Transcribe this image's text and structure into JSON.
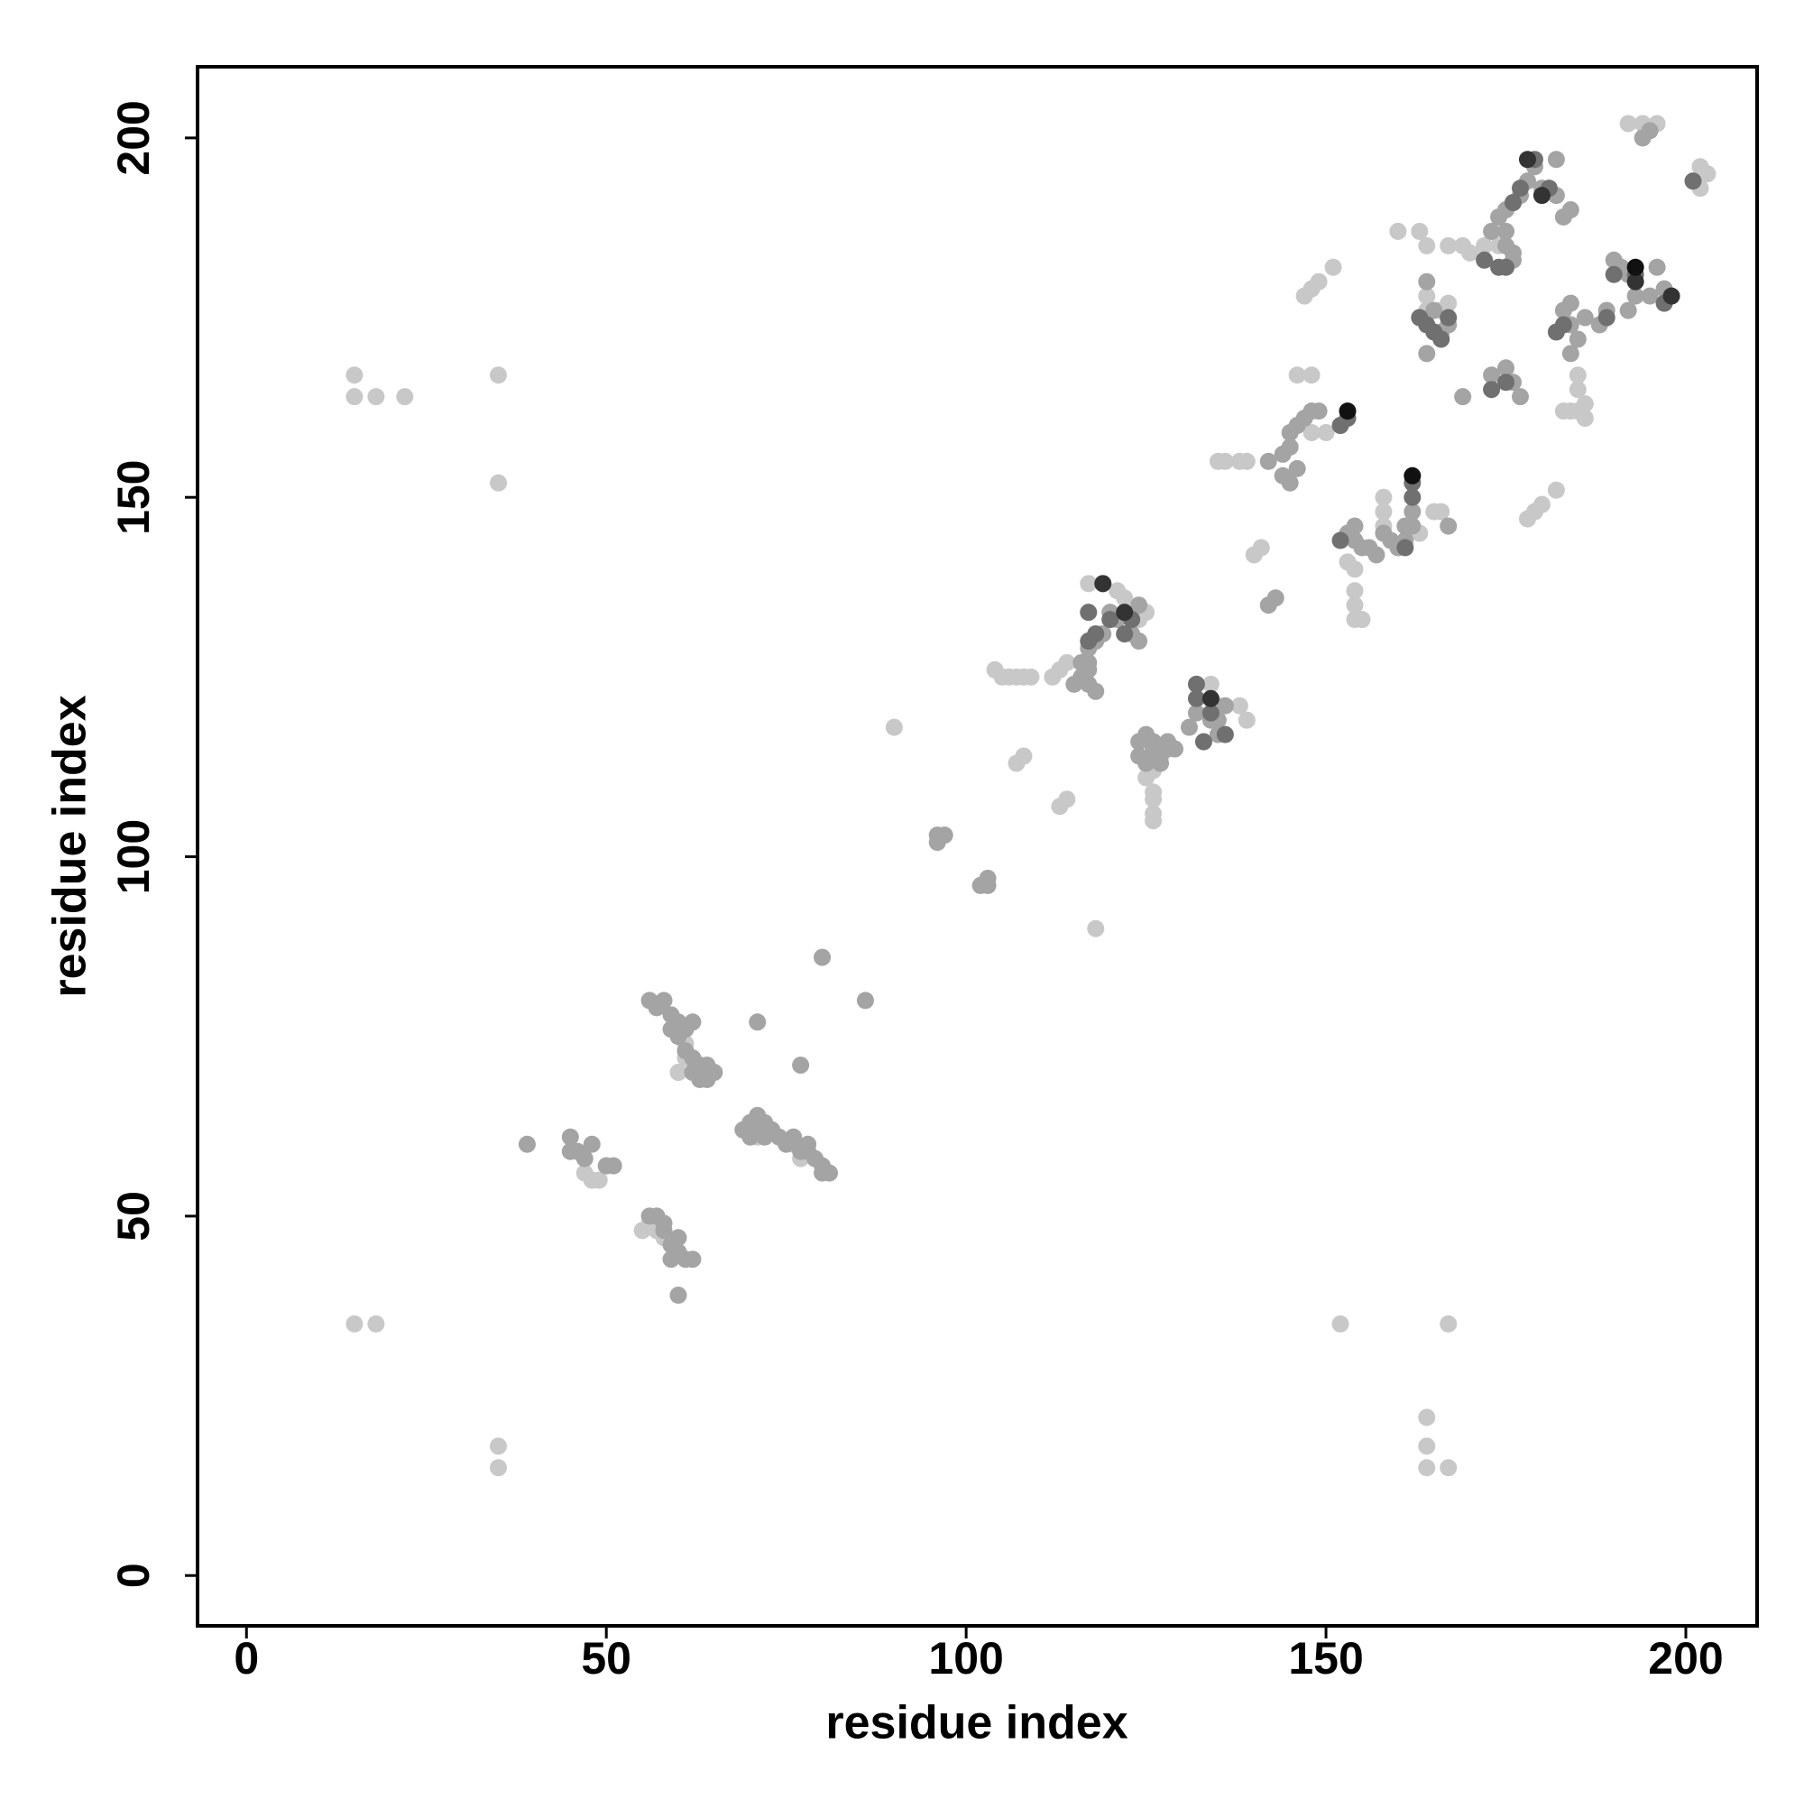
{
  "chart_data": {
    "type": "scatter",
    "xlabel": "residue index",
    "ylabel": "residue index",
    "xlim": [
      -6.8,
      209.9
    ],
    "ylim": [
      -7,
      209.9
    ],
    "xticks": [
      0,
      50,
      100,
      150,
      200
    ],
    "yticks": [
      0,
      50,
      100,
      150,
      200
    ],
    "grid": false,
    "series": [
      {
        "color": "#c8c8c8",
        "x": [
          15,
          15,
          18,
          22,
          35,
          35,
          15,
          18,
          35,
          35,
          152,
          167,
          164,
          164,
          164,
          167,
          90,
          118,
          113,
          114,
          107,
          108,
          104,
          105,
          106,
          107,
          108,
          109,
          112,
          113,
          114,
          126,
          126,
          126,
          126,
          125,
          126,
          138,
          139,
          135,
          134,
          135,
          136,
          138,
          139,
          147,
          148,
          149,
          151,
          154,
          154,
          155,
          154,
          160,
          163,
          164,
          167,
          169,
          178,
          179,
          180,
          182,
          185,
          186,
          186,
          185,
          192,
          194,
          196,
          202,
          203,
          202,
          117,
          119,
          121,
          122,
          124,
          125,
          164,
          164,
          166,
          167,
          165,
          166,
          163,
          158,
          158,
          158,
          183,
          184,
          185,
          172,
          174,
          170,
          146,
          148,
          148,
          150,
          140,
          141,
          56,
          57,
          55,
          58,
          47,
          48,
          49,
          50,
          61,
          61,
          60,
          70,
          71,
          76,
          77,
          153,
          154
        ],
        "y": [
          167,
          164,
          164,
          164,
          167,
          152,
          35,
          35,
          18,
          15,
          35,
          35,
          22,
          18,
          15,
          15,
          118,
          90,
          107,
          108,
          113,
          114,
          126,
          125,
          125,
          125,
          125,
          125,
          125,
          126,
          127,
          105,
          106,
          108,
          109,
          111,
          112,
          121,
          119,
          121,
          124,
          155,
          155,
          155,
          155,
          178,
          179,
          180,
          182,
          133,
          135,
          133,
          137,
          187,
          187,
          185,
          185,
          185,
          147,
          148,
          149,
          151,
          165,
          163,
          161,
          167,
          202,
          202,
          202,
          193,
          195,
          196,
          138,
          138,
          137,
          136,
          133,
          134,
          178,
          176,
          176,
          177,
          148,
          148,
          145,
          150,
          148,
          146,
          162,
          162,
          162,
          185,
          185,
          184,
          167,
          167,
          159,
          159,
          142,
          143,
          49,
          48,
          48,
          47,
          56,
          55,
          55,
          57,
          74,
          72,
          70,
          63,
          61,
          60,
          58,
          141,
          140
        ]
      },
      {
        "color": "#a4a4a4",
        "x": [
          39,
          45,
          45,
          46,
          47,
          48,
          50,
          51,
          56,
          57,
          58,
          59,
          59,
          60,
          61,
          62,
          60,
          60,
          58,
          56,
          57,
          58,
          59,
          59,
          60,
          60,
          61,
          62,
          61,
          62,
          62,
          63,
          63,
          64,
          65,
          64,
          69,
          70,
          70,
          71,
          71,
          72,
          72,
          73,
          74,
          75,
          76,
          77,
          78,
          78,
          79,
          80,
          81,
          80,
          71,
          77,
          80,
          86,
          96,
          97,
          96,
          102,
          103,
          103,
          115,
          116,
          117,
          117,
          116,
          117,
          117,
          118,
          118,
          119,
          120,
          121,
          123,
          124,
          124,
          124,
          125,
          124,
          125,
          126,
          127,
          128,
          129,
          126,
          127,
          128,
          131,
          132,
          134,
          135,
          135,
          136,
          142,
          143,
          142,
          144,
          145,
          144,
          145,
          146,
          145,
          146,
          147,
          148,
          149,
          153,
          154,
          154,
          155,
          156,
          157,
          158,
          159,
          160,
          161,
          161,
          162,
          162,
          167,
          164,
          165,
          164,
          166,
          167,
          173,
          175,
          175,
          176,
          176,
          174,
          175,
          176,
          177,
          178,
          180,
          179,
          182,
          183,
          184,
          182,
          173,
          175,
          176,
          177,
          184,
          183,
          184,
          185,
          184,
          186,
          188,
          189,
          190,
          191,
          192,
          193,
          195,
          196,
          197,
          192,
          195,
          194,
          169
        ],
        "y": [
          60,
          61,
          59,
          59,
          58,
          60,
          57,
          57,
          50,
          50,
          48,
          46,
          44,
          45,
          44,
          44,
          47,
          39,
          49,
          80,
          79,
          80,
          78,
          76,
          77,
          75,
          76,
          77,
          73,
          72,
          70,
          71,
          69,
          71,
          70,
          69,
          62,
          63,
          61,
          64,
          62,
          63,
          61,
          62,
          61,
          60,
          61,
          59,
          59,
          60,
          58,
          57,
          56,
          56,
          77,
          71,
          86,
          80,
          102,
          103,
          103,
          96,
          97,
          96,
          124,
          125,
          124,
          127,
          127,
          126,
          129,
          123,
          130,
          131,
          134,
          133,
          131,
          130,
          135,
          116,
          117,
          114,
          113,
          115,
          114,
          115,
          115,
          116,
          113,
          116,
          118,
          120,
          119,
          117,
          119,
          121,
          135,
          136,
          155,
          153,
          152,
          156,
          157,
          154,
          159,
          160,
          161,
          162,
          162,
          145,
          146,
          144,
          143,
          143,
          142,
          145,
          144,
          143,
          144,
          146,
          146,
          148,
          146,
          180,
          176,
          170,
          173,
          174,
          187,
          187,
          185,
          184,
          183,
          189,
          190,
          191,
          192,
          194,
          193,
          196,
          197,
          189,
          190,
          192,
          167,
          168,
          166,
          164,
          177,
          176,
          174,
          172,
          170,
          175,
          174,
          176,
          183,
          182,
          181,
          178,
          178,
          182,
          179,
          176,
          201,
          200,
          164
        ]
      },
      {
        "color": "#707070",
        "x": [
          117,
          118,
          117,
          120,
          122,
          123,
          132,
          132,
          133,
          136,
          134,
          152,
          152,
          153,
          162,
          162,
          161,
          163,
          164,
          165,
          166,
          167,
          174,
          175,
          172,
          176,
          177,
          179,
          181,
          173,
          175,
          182,
          183,
          189,
          190,
          193,
          197,
          201
        ],
        "y": [
          134,
          131,
          130,
          133,
          131,
          133,
          122,
          124,
          116,
          117,
          120,
          144,
          160,
          161,
          152,
          150,
          143,
          175,
          174,
          173,
          172,
          175,
          182,
          182,
          183,
          191,
          193,
          197,
          193,
          165,
          166,
          173,
          174,
          175,
          181,
          181,
          177,
          194
        ]
      },
      {
        "color": "#333333",
        "x": [
          119,
          122,
          134,
          178,
          180,
          193,
          198
        ],
        "y": [
          138,
          134,
          122,
          197,
          192,
          180,
          178
        ]
      },
      {
        "color": "#111111",
        "x": [
          153,
          162,
          193
        ],
        "y": [
          162,
          153,
          182
        ]
      }
    ]
  }
}
